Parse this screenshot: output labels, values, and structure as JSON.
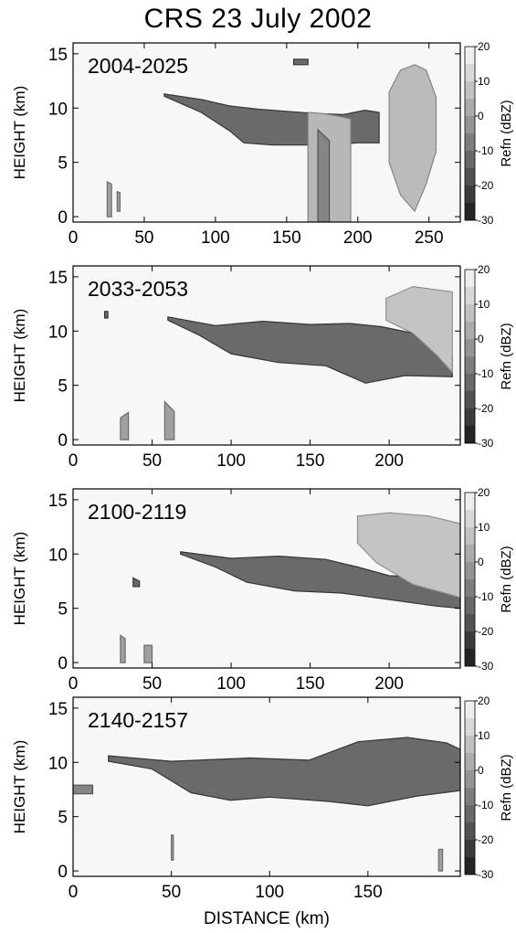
{
  "title": "CRS  23 July 2002",
  "xlabel": "DISTANCE (km)",
  "chart_data": [
    {
      "type": "heatmap",
      "time_label": "2004-2025",
      "ylabel": "HEIGHT (km)",
      "xlim": [
        0,
        272
      ],
      "ylim": [
        -0.5,
        16
      ],
      "xticks": [
        0,
        50,
        100,
        150,
        200,
        250
      ],
      "yticks": [
        0,
        5,
        10,
        15
      ],
      "colorbar": {
        "label": "Refn (dBZ)",
        "range": [
          -30,
          20
        ],
        "ticks": [
          "20",
          "10",
          "0",
          "-10",
          "-20",
          "-30"
        ]
      },
      "features": [
        {
          "top": [
            [
              64,
              11.3
            ],
            [
              90,
              10.8
            ],
            [
              110,
              10.2
            ],
            [
              130,
              9.9
            ],
            [
              150,
              9.7
            ],
            [
              170,
              9.5
            ],
            [
              190,
              9.4
            ],
            [
              205,
              9.8
            ],
            [
              215,
              9.6
            ]
          ],
          "base": [
            [
              64,
              11.1
            ],
            [
              90,
              9.6
            ],
            [
              110,
              7.9
            ],
            [
              120,
              6.8
            ],
            [
              140,
              6.6
            ],
            [
              160,
              6.6
            ],
            [
              180,
              6.6
            ],
            [
              200,
              6.8
            ],
            [
              215,
              6.8
            ]
          ],
          "dbz": -12
        },
        {
          "top": [
            [
              165,
              9.6
            ],
            [
              175,
              9.5
            ],
            [
              185,
              9.3
            ],
            [
              195,
              9.0
            ]
          ],
          "base": [
            [
              165,
              -0.5
            ],
            [
              175,
              -0.5
            ],
            [
              185,
              -0.5
            ],
            [
              195,
              -0.5
            ]
          ],
          "dbz": 5
        },
        {
          "top": [
            [
              222,
              11.5
            ],
            [
              230,
              13.5
            ],
            [
              240,
              14
            ],
            [
              248,
              13.5
            ],
            [
              255,
              11
            ]
          ],
          "base": [
            [
              222,
              5
            ],
            [
              230,
              2
            ],
            [
              240,
              0.5
            ],
            [
              248,
              3
            ],
            [
              255,
              6
            ]
          ],
          "dbz": 6
        },
        {
          "top": [
            [
              172,
              8
            ],
            [
              180,
              7
            ]
          ],
          "base": [
            [
              172,
              -0.5
            ],
            [
              180,
              -0.5
            ]
          ],
          "dbz": -6
        },
        {
          "top": [
            [
              24,
              3.2
            ],
            [
              27,
              3.0
            ]
          ],
          "base": [
            [
              24,
              0
            ],
            [
              27,
              0
            ]
          ],
          "dbz": 0
        },
        {
          "top": [
            [
              31,
              2.3
            ],
            [
              33,
              2.2
            ]
          ],
          "base": [
            [
              31,
              0.5
            ],
            [
              33,
              0.5
            ]
          ],
          "dbz": 0
        },
        {
          "top": [
            [
              155,
              14.5
            ],
            [
              165,
              14.5
            ]
          ],
          "base": [
            [
              155,
              14.0
            ],
            [
              165,
              14.0
            ]
          ],
          "dbz": -12
        }
      ]
    },
    {
      "type": "heatmap",
      "time_label": "2033-2053",
      "ylabel": "HEIGHT (km)",
      "xlim": [
        0,
        245
      ],
      "ylim": [
        -0.5,
        16
      ],
      "xticks": [
        0,
        50,
        100,
        150,
        200
      ],
      "yticks": [
        0,
        5,
        10,
        15
      ],
      "colorbar": {
        "label": "Refn (dBZ)",
        "range": [
          -30,
          20
        ],
        "ticks": [
          "20",
          "10",
          "0",
          "-10",
          "-20",
          "-30"
        ]
      },
      "features": [
        {
          "top": [
            [
              60,
              11.3
            ],
            [
              90,
              10.5
            ],
            [
              120,
              10.9
            ],
            [
              150,
              10.6
            ],
            [
              175,
              10.7
            ],
            [
              195,
              10.4
            ],
            [
              215,
              9.8
            ],
            [
              240,
              7.6
            ]
          ],
          "base": [
            [
              60,
              11.0
            ],
            [
              80,
              9.6
            ],
            [
              100,
              7.9
            ],
            [
              130,
              7.1
            ],
            [
              160,
              6.8
            ],
            [
              185,
              5.2
            ],
            [
              210,
              5.9
            ],
            [
              240,
              5.8
            ]
          ],
          "dbz": -12
        },
        {
          "top": [
            [
              198,
              13.0
            ],
            [
              215,
              14.1
            ],
            [
              230,
              13.8
            ],
            [
              240,
              13.6
            ]
          ],
          "base": [
            [
              198,
              11.0
            ],
            [
              215,
              9.8
            ],
            [
              230,
              7.8
            ],
            [
              240,
              6.2
            ]
          ],
          "dbz": 8
        },
        {
          "top": [
            [
              30,
              2.0
            ],
            [
              35,
              2.5
            ]
          ],
          "base": [
            [
              30,
              0
            ],
            [
              35,
              0
            ]
          ],
          "dbz": 0
        },
        {
          "top": [
            [
              58,
              3.5
            ],
            [
              64,
              2.6
            ]
          ],
          "base": [
            [
              58,
              0
            ],
            [
              64,
              0
            ]
          ],
          "dbz": 0
        },
        {
          "top": [
            [
              20,
              11.8
            ],
            [
              22,
              11.8
            ]
          ],
          "base": [
            [
              20,
              11.2
            ],
            [
              22,
              11.2
            ]
          ],
          "dbz": -12
        }
      ]
    },
    {
      "type": "heatmap",
      "time_label": "2100-2119",
      "ylabel": "HEIGHT (km)",
      "xlim": [
        0,
        245
      ],
      "ylim": [
        -0.5,
        16
      ],
      "xticks": [
        0,
        50,
        100,
        150,
        200
      ],
      "yticks": [
        0,
        5,
        10,
        15
      ],
      "colorbar": {
        "label": "Refn (dBZ)",
        "range": [
          -30,
          20
        ],
        "ticks": [
          "20",
          "10",
          "0",
          "-10",
          "-20",
          "-30"
        ]
      },
      "features": [
        {
          "top": [
            [
              68,
              10.2
            ],
            [
              100,
              9.6
            ],
            [
              130,
              9.8
            ],
            [
              160,
              9.5
            ],
            [
              180,
              8.8
            ],
            [
              200,
              8.0
            ],
            [
              230,
              7.8
            ],
            [
              245,
              7.0
            ]
          ],
          "base": [
            [
              68,
              10.0
            ],
            [
              90,
              8.8
            ],
            [
              110,
              7.4
            ],
            [
              140,
              6.6
            ],
            [
              170,
              6.4
            ],
            [
              200,
              5.8
            ],
            [
              230,
              5.2
            ],
            [
              245,
              5.0
            ]
          ],
          "dbz": -12
        },
        {
          "top": [
            [
              180,
              13.5
            ],
            [
              200,
              13.8
            ],
            [
              225,
              13.5
            ],
            [
              245,
              12.8
            ]
          ],
          "base": [
            [
              180,
              11.0
            ],
            [
              192,
              9.2
            ],
            [
              215,
              7.2
            ],
            [
              245,
              6.0
            ]
          ],
          "dbz": 8
        },
        {
          "top": [
            [
              30,
              2.5
            ],
            [
              33,
              2.2
            ]
          ],
          "base": [
            [
              30,
              0
            ],
            [
              33,
              0
            ]
          ],
          "dbz": 0
        },
        {
          "top": [
            [
              45,
              1.6
            ],
            [
              50,
              1.6
            ]
          ],
          "base": [
            [
              45,
              0
            ],
            [
              50,
              0
            ]
          ],
          "dbz": 0
        },
        {
          "top": [
            [
              38,
              7.8
            ],
            [
              42,
              7.5
            ]
          ],
          "base": [
            [
              38,
              7.0
            ],
            [
              42,
              7.0
            ]
          ],
          "dbz": -12
        }
      ]
    },
    {
      "type": "heatmap",
      "time_label": "2140-2157",
      "ylabel": "HEIGHT (km)",
      "xlim": [
        0,
        197
      ],
      "ylim": [
        -0.5,
        16
      ],
      "xticks": [
        0,
        50,
        100,
        150
      ],
      "yticks": [
        0,
        5,
        10,
        15
      ],
      "colorbar": {
        "label": "Refn (dBZ)",
        "range": [
          -30,
          20
        ],
        "ticks": [
          "20",
          "10",
          "0",
          "-10",
          "-20",
          "-30"
        ]
      },
      "features": [
        {
          "top": [
            [
              18,
              10.6
            ],
            [
              50,
              10.1
            ],
            [
              90,
              10.4
            ],
            [
              120,
              10.2
            ],
            [
              145,
              11.9
            ],
            [
              170,
              12.3
            ],
            [
              190,
              11.8
            ],
            [
              197,
              11.2
            ]
          ],
          "base": [
            [
              18,
              10.1
            ],
            [
              40,
              9.4
            ],
            [
              60,
              7.2
            ],
            [
              80,
              6.5
            ],
            [
              100,
              6.8
            ],
            [
              130,
              6.4
            ],
            [
              150,
              6.0
            ],
            [
              175,
              6.9
            ],
            [
              197,
              7.4
            ]
          ],
          "dbz": -12
        },
        {
          "top": [
            [
              0,
              7.9
            ],
            [
              10,
              7.9
            ]
          ],
          "base": [
            [
              0,
              7.1
            ],
            [
              10,
              7.1
            ]
          ],
          "dbz": -6
        },
        {
          "top": [
            [
              50,
              3.3
            ],
            [
              51,
              3.3
            ]
          ],
          "base": [
            [
              50,
              1.0
            ],
            [
              51,
              1.0
            ]
          ],
          "dbz": 0
        },
        {
          "top": [
            [
              186,
              2.0
            ],
            [
              188,
              2.0
            ]
          ],
          "base": [
            [
              186,
              0
            ],
            [
              188,
              0
            ]
          ],
          "dbz": 0
        }
      ]
    }
  ]
}
